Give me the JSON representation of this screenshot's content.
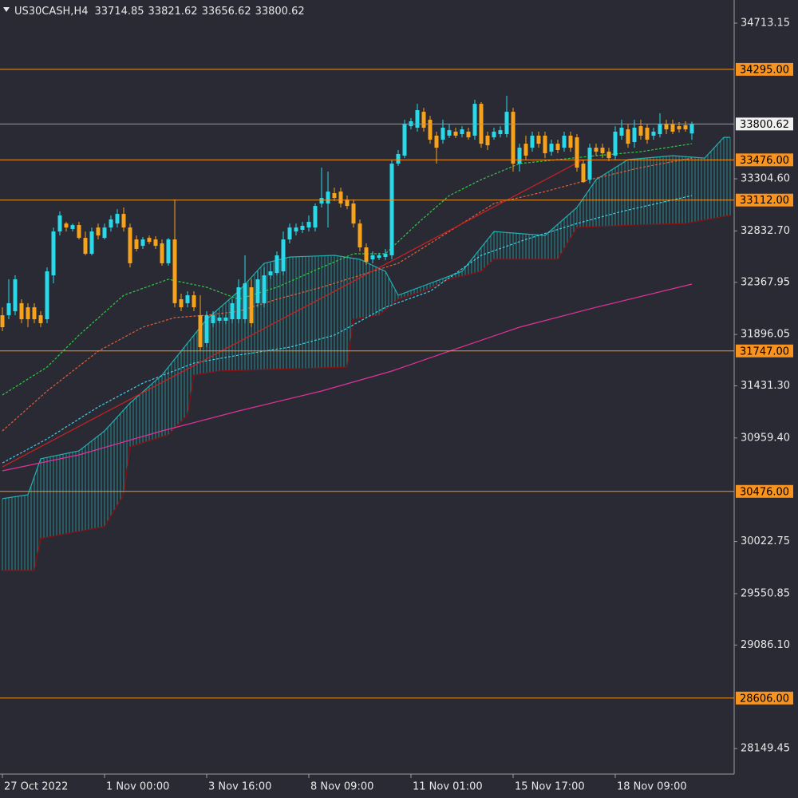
{
  "chart_data": {
    "type": "candlestick",
    "title": "US30CASH,H4",
    "up_color": "#29d9e9",
    "down_color": "#f7a21b",
    "categories": [
      "27 Oct 2022",
      null,
      null,
      null,
      null,
      null,
      null,
      null,
      null,
      null,
      null,
      null,
      null,
      null,
      null,
      null,
      "1 Nov 00:00",
      null,
      null,
      null,
      null,
      null,
      null,
      null,
      null,
      null,
      null,
      null,
      null,
      null,
      null,
      null,
      "3 Nov 16:00",
      null,
      null,
      null,
      null,
      null,
      null,
      null,
      null,
      null,
      null,
      null,
      null,
      null,
      null,
      null,
      "8 Nov 09:00",
      null,
      null,
      null,
      null,
      null,
      null,
      null,
      null,
      null,
      null,
      null,
      null,
      null,
      null,
      null,
      "11 Nov 01:00",
      null,
      null,
      null,
      null,
      null,
      null,
      null,
      null,
      null,
      null,
      null,
      null,
      null,
      null,
      null,
      "15 Nov 17:00",
      null,
      null,
      null,
      null,
      null,
      null,
      null,
      null,
      null,
      null,
      null,
      null,
      null,
      null,
      null,
      "18 Nov 09:00",
      null,
      null,
      null,
      null,
      null,
      null,
      null,
      null,
      null,
      null,
      null,
      null
    ],
    "ohlc": [
      [
        32070,
        32142,
        31926,
        31962
      ],
      [
        32070,
        32395,
        32034,
        32179
      ],
      [
        32106,
        32431,
        32070,
        32395
      ],
      [
        32179,
        32215,
        31998,
        32034
      ],
      [
        32142,
        32179,
        31962,
        32034
      ],
      [
        32142,
        32179,
        31998,
        32034
      ],
      [
        32070,
        32106,
        31962,
        31998
      ],
      [
        32034,
        32503,
        31998,
        32467
      ],
      [
        32431,
        32864,
        32359,
        32828
      ],
      [
        32828,
        33009,
        32792,
        32973
      ],
      [
        32900,
        32915,
        32828,
        32864
      ],
      [
        32850,
        32900,
        32828,
        32886
      ],
      [
        32886,
        32915,
        32756,
        32770
      ],
      [
        32770,
        32828,
        32612,
        32626
      ],
      [
        32626,
        32864,
        32612,
        32828
      ],
      [
        32864,
        32900,
        32756,
        32792
      ],
      [
        32770,
        32900,
        32756,
        32864
      ],
      [
        32864,
        32973,
        32828,
        32937
      ],
      [
        32900,
        33030,
        32864,
        32987
      ],
      [
        32987,
        33045,
        32828,
        32864
      ],
      [
        32864,
        32900,
        32503,
        32540
      ],
      [
        32756,
        32792,
        32648,
        32670
      ],
      [
        32698,
        32778,
        32670,
        32756
      ],
      [
        32770,
        32792,
        32713,
        32734
      ],
      [
        32756,
        32785,
        32670,
        32698
      ],
      [
        32720,
        32756,
        32518,
        32540
      ],
      [
        32540,
        32770,
        32518,
        32756
      ],
      [
        32756,
        33117,
        32142,
        32179
      ],
      [
        32215,
        32265,
        32106,
        32142
      ],
      [
        32179,
        32287,
        32142,
        32251
      ],
      [
        32251,
        32287,
        32106,
        32142
      ],
      [
        32070,
        32251,
        31745,
        31781
      ],
      [
        31818,
        32106,
        31781,
        32070
      ],
      [
        31998,
        32106,
        31962,
        32070
      ],
      [
        32020,
        32070,
        31998,
        32049
      ],
      [
        32020,
        32078,
        31990,
        32049
      ],
      [
        32034,
        32215,
        31998,
        32179
      ],
      [
        32034,
        32395,
        31998,
        32323
      ],
      [
        32034,
        32612,
        31998,
        32359
      ],
      [
        32323,
        32395,
        31962,
        31998
      ],
      [
        32179,
        32467,
        32142,
        32395
      ],
      [
        32179,
        32503,
        32142,
        32431
      ],
      [
        32431,
        32540,
        32395,
        32467
      ],
      [
        32452,
        32648,
        32431,
        32612
      ],
      [
        32467,
        32828,
        32431,
        32756
      ],
      [
        32756,
        32900,
        32720,
        32864
      ],
      [
        32828,
        32900,
        32792,
        32864
      ],
      [
        32843,
        32915,
        32814,
        32879
      ],
      [
        32864,
        32973,
        32828,
        32915
      ],
      [
        32864,
        33081,
        32828,
        33059
      ],
      [
        33081,
        33406,
        33045,
        33131
      ],
      [
        33081,
        33370,
        32864,
        33189
      ],
      [
        33175,
        33225,
        33103,
        33131
      ],
      [
        33189,
        33225,
        33045,
        33081
      ],
      [
        33117,
        33153,
        33030,
        33059
      ],
      [
        33081,
        33117,
        32864,
        32900
      ],
      [
        32900,
        32937,
        32648,
        32684
      ],
      [
        32684,
        32720,
        32525,
        32554
      ],
      [
        32576,
        32648,
        32540,
        32612
      ],
      [
        32590,
        32634,
        32569,
        32612
      ],
      [
        32597,
        32670,
        32569,
        32626
      ],
      [
        32612,
        33478,
        32576,
        33442
      ],
      [
        33442,
        33565,
        33420,
        33529
      ],
      [
        33514,
        33839,
        33492,
        33803
      ],
      [
        33781,
        33854,
        33752,
        33825
      ],
      [
        33767,
        33983,
        33731,
        33926
      ],
      [
        33911,
        33947,
        33731,
        33767
      ],
      [
        33839,
        33875,
        33622,
        33659
      ],
      [
        33695,
        33731,
        33442,
        33586
      ],
      [
        33659,
        33839,
        33622,
        33767
      ],
      [
        33695,
        33803,
        33673,
        33745
      ],
      [
        33731,
        33767,
        33673,
        33695
      ],
      [
        33709,
        33781,
        33680,
        33752
      ],
      [
        33731,
        33767,
        33659,
        33680
      ],
      [
        33695,
        34020,
        33659,
        33983
      ],
      [
        33983,
        33998,
        33586,
        33622
      ],
      [
        33695,
        33731,
        33565,
        33608
      ],
      [
        33680,
        33767,
        33659,
        33731
      ],
      [
        33709,
        33781,
        33680,
        33745
      ],
      [
        33709,
        34056,
        33680,
        33911
      ],
      [
        33911,
        33947,
        33370,
        33442
      ],
      [
        33442,
        33622,
        33370,
        33586
      ],
      [
        33622,
        33695,
        33478,
        33514
      ],
      [
        33586,
        33731,
        33550,
        33695
      ],
      [
        33695,
        33731,
        33586,
        33622
      ],
      [
        33695,
        33731,
        33492,
        33536
      ],
      [
        33550,
        33659,
        33514,
        33622
      ],
      [
        33622,
        33659,
        33536,
        33565
      ],
      [
        33586,
        33731,
        33550,
        33695
      ],
      [
        33695,
        33731,
        33550,
        33586
      ],
      [
        33680,
        33709,
        33370,
        33406
      ],
      [
        33442,
        33478,
        33268,
        33275
      ],
      [
        33297,
        33622,
        33261,
        33586
      ],
      [
        33586,
        33622,
        33514,
        33550
      ],
      [
        33586,
        33622,
        33492,
        33536
      ],
      [
        33550,
        33586,
        33464,
        33492
      ],
      [
        33514,
        33781,
        33478,
        33731
      ],
      [
        33695,
        33839,
        33659,
        33767
      ],
      [
        33752,
        33803,
        33586,
        33622
      ],
      [
        33637,
        33839,
        33586,
        33767
      ],
      [
        33781,
        33839,
        33659,
        33695
      ],
      [
        33767,
        33803,
        33622,
        33659
      ],
      [
        33695,
        33767,
        33659,
        33731
      ],
      [
        33709,
        33897,
        33680,
        33803
      ],
      [
        33803,
        33839,
        33709,
        33752
      ],
      [
        33803,
        33839,
        33709,
        33731
      ],
      [
        33781,
        33818,
        33723,
        33752
      ],
      [
        33789,
        33825,
        33731,
        33752
      ],
      [
        33714.85,
        33821.62,
        33656.62,
        33800.62
      ]
    ],
    "ylim": [
      27918.4,
      34922.5
    ],
    "yticks": [
      34713.15,
      {
        "value": 33304.6,
        "label": "33304.60"
      },
      {
        "value": 32832.7,
        "label": "32832.70"
      },
      32367.95,
      31896.05,
      {
        "value": 31431.3,
        "label": "31431.30"
      },
      {
        "value": 30959.4,
        "label": "30959.40"
      },
      30022.75,
      29550.85,
      {
        "value": 29086.1,
        "label": "29086.10"
      },
      28149.45
    ],
    "levels": [
      {
        "value": 34295,
        "label": "34295.00"
      },
      {
        "value": 33476,
        "label": "33476.00"
      },
      {
        "value": 33112,
        "label": "33112.00"
      },
      {
        "value": 31747,
        "label": "31747.00"
      },
      {
        "value": 30476,
        "label": "30476.00"
      },
      {
        "value": 28606,
        "label": "28606.00"
      }
    ],
    "level_color": "#f7931e",
    "price_line_color": "#9a9a9a",
    "lines": [
      {
        "color": "#e0329a",
        "style": "solid",
        "x": [
          0,
          12,
          25,
          37,
          50,
          61,
          70,
          81,
          93,
          108
        ],
        "values": [
          30662,
          30807,
          31023,
          31204,
          31384,
          31565,
          31745,
          31962,
          32142,
          32352
        ]
      },
      {
        "color": "#2ecc40",
        "style": "dashed",
        "x": [
          0,
          7,
          12,
          19,
          26,
          32,
          37,
          43,
          50,
          55,
          60,
          65,
          70,
          75,
          81,
          87,
          93,
          100,
          108
        ],
        "values": [
          31348,
          31601,
          31890,
          32251,
          32395,
          32323,
          32215,
          32323,
          32503,
          32626,
          32626,
          32900,
          33153,
          33297,
          33442,
          33478,
          33514,
          33550,
          33622
        ]
      },
      {
        "color": "#e0603a",
        "style": "dashed",
        "x": [
          0,
          7,
          15,
          22,
          27,
          32,
          37,
          43,
          50,
          56,
          62,
          70,
          77,
          85,
          92,
          100,
          108
        ],
        "values": [
          31023,
          31384,
          31745,
          31962,
          32049,
          32070,
          32106,
          32215,
          32323,
          32431,
          32540,
          32828,
          33081,
          33189,
          33297,
          33406,
          33492
        ]
      },
      {
        "color": "#3fd0e8",
        "style": "dashed",
        "x": [
          0,
          7,
          15,
          22,
          30,
          37,
          45,
          52,
          60,
          67,
          75,
          82,
          90,
          97,
          108
        ],
        "values": [
          30734,
          30951,
          31240,
          31456,
          31637,
          31709,
          31781,
          31890,
          32142,
          32287,
          32612,
          32756,
          32900,
          33009,
          33153
        ]
      },
      {
        "color": "#d02020",
        "style": "solid",
        "x": [
          0,
          91
        ],
        "values": [
          30698,
          33478
        ]
      }
    ],
    "cloud": {
      "hatch_color": "#23a7a7",
      "span_a": {
        "color": "#23b0b0",
        "x": [
          0,
          4,
          6,
          12,
          16,
          20,
          25,
          30,
          32,
          37,
          41,
          45,
          52,
          56,
          60,
          62,
          67,
          72,
          77,
          85,
          90,
          93,
          98,
          105,
          110,
          113,
          114
        ],
        "values": [
          30410,
          30446,
          30771,
          30843,
          31023,
          31276,
          31529,
          31890,
          32034,
          32287,
          32540,
          32597,
          32612,
          32576,
          32467,
          32251,
          32359,
          32467,
          32828,
          32792,
          33045,
          33297,
          33478,
          33514,
          33492,
          33680,
          33680
        ]
      },
      "span_b": {
        "color": "#8b1010",
        "x": [
          0,
          5,
          6,
          16,
          19,
          20,
          26,
          29,
          30,
          34,
          54,
          55,
          59,
          62,
          66,
          70,
          75,
          77,
          87,
          90,
          99,
          107,
          114
        ],
        "values": [
          29760,
          29760,
          30049,
          30157,
          30446,
          30879,
          30987,
          31168,
          31529,
          31565,
          31601,
          32034,
          32070,
          32215,
          32287,
          32395,
          32467,
          32576,
          32576,
          32864,
          32886,
          32900,
          32973
        ]
      }
    }
  }
}
